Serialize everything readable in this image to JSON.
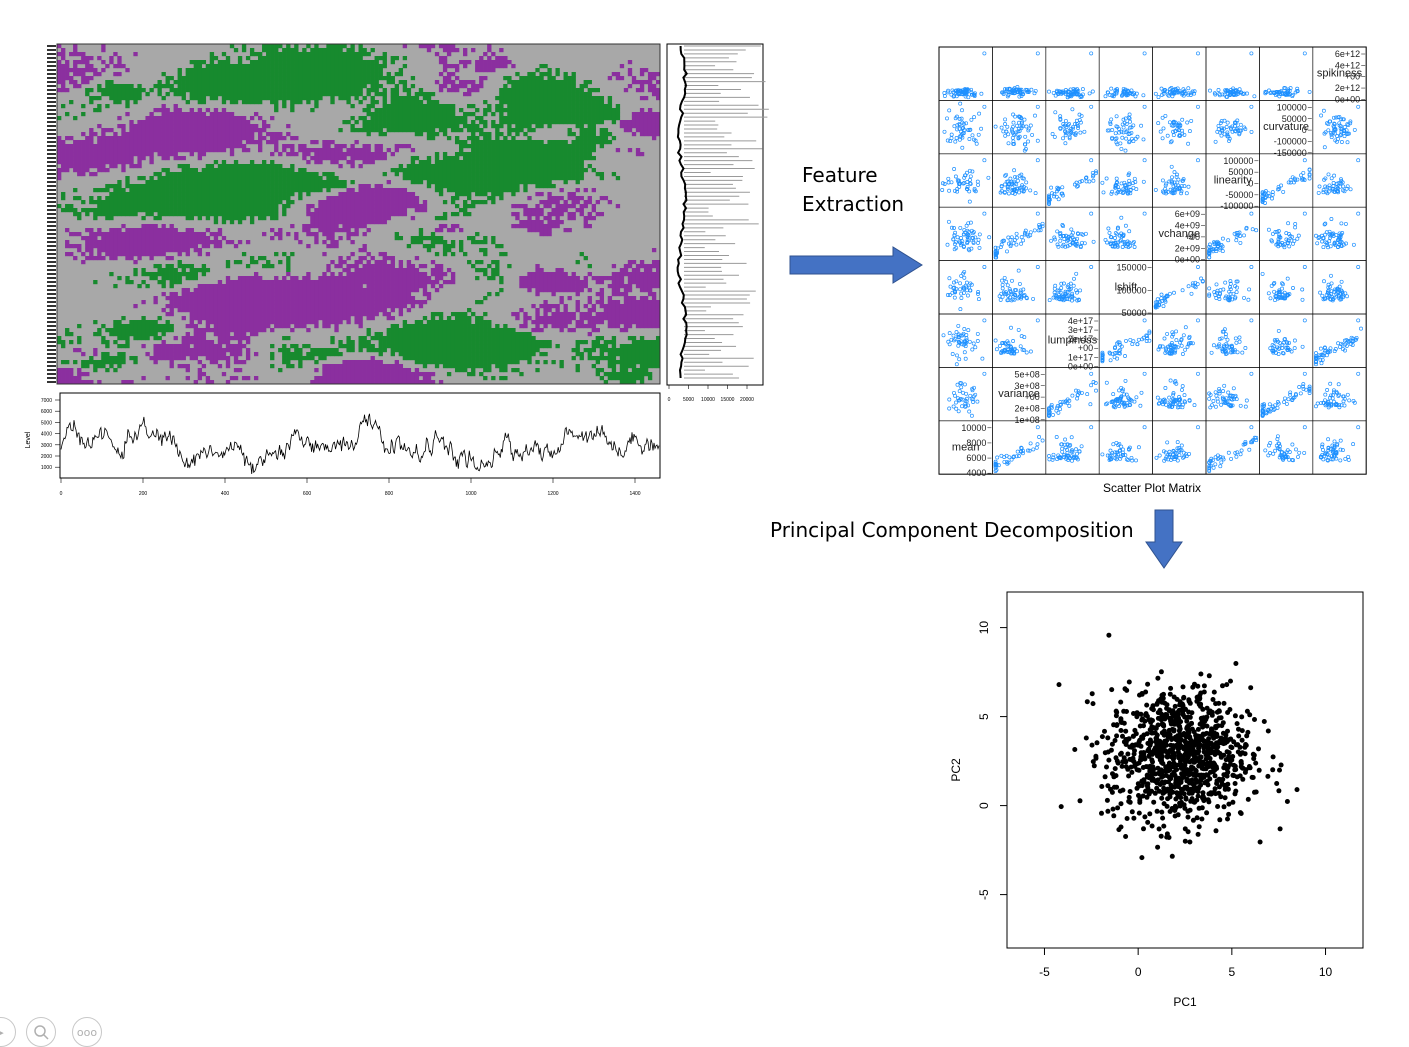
{
  "left_panel": {
    "heatmap_colors": {
      "high": "#8b2f9f",
      "mid": "#a8a8a8",
      "low": "#178a2e"
    },
    "level_plot": {
      "ylabel": "Level",
      "yticks": [
        "7000",
        "6000",
        "5000",
        "4000",
        "3000",
        "2000",
        "1000"
      ],
      "xticks": [
        "0",
        "200",
        "400",
        "600",
        "800",
        "1000",
        "1200",
        "1400"
      ]
    },
    "side_plot": {
      "xticks": [
        "0",
        "5000",
        "10000",
        "15000",
        "20000"
      ]
    }
  },
  "steps": {
    "feature_extraction_line1": "Feature",
    "feature_extraction_line2": "Extraction",
    "pca": "Principal Component Decomposition"
  },
  "arrow_color": "#4472c4",
  "scatter_matrix": {
    "title": "Scatter Plot Matrix",
    "point_color": "#1e90ff",
    "diagonal": [
      {
        "name": "spikiness",
        "ticks": [
          "6e+12",
          "4e+12",
          "+00",
          "2e+12",
          "0e+00"
        ]
      },
      {
        "name": "curvature",
        "ticks": [
          "100000",
          "50000",
          "0",
          "-100000",
          "-150000"
        ]
      },
      {
        "name": "linearity",
        "ticks": [
          "100000",
          "50000",
          "0",
          "-50000",
          "-100000"
        ]
      },
      {
        "name": "vchange",
        "ticks": [
          "6e+09",
          "4e+09",
          "+00",
          "2e+09",
          "0e+00"
        ]
      },
      {
        "name": "lshift",
        "ticks": [
          "150000",
          "100000",
          "50000"
        ]
      },
      {
        "name": "lumpiness",
        "ticks": [
          "4e+17",
          "3e+17",
          "2e+17",
          "+00",
          "1e+17",
          "0e+00"
        ]
      },
      {
        "name": "variance",
        "ticks": [
          "5e+08",
          "3e+08",
          "+00",
          "2e+08",
          "1e+08"
        ]
      },
      {
        "name": "mean",
        "ticks": [
          "10000",
          "8000",
          "6000",
          "4000"
        ]
      }
    ]
  },
  "chart_data": {
    "type": "scatter",
    "xlabel": "PC1",
    "ylabel": "PC2",
    "xlim": [
      -7,
      12
    ],
    "ylim": [
      -8,
      12
    ],
    "xticks": [
      "-5",
      "0",
      "5",
      "10"
    ],
    "yticks": [
      "-5",
      "0",
      "5",
      "10"
    ],
    "point_count": 1000,
    "point_center": [
      2.2,
      2.8
    ],
    "point_spread_sd": [
      1.9,
      1.9
    ],
    "grid": false
  },
  "controls": {
    "pointer_icon": "pointer-icon",
    "zoom_icon": "zoom-icon",
    "more_icon": "more-icon",
    "more_label": "ooo"
  }
}
